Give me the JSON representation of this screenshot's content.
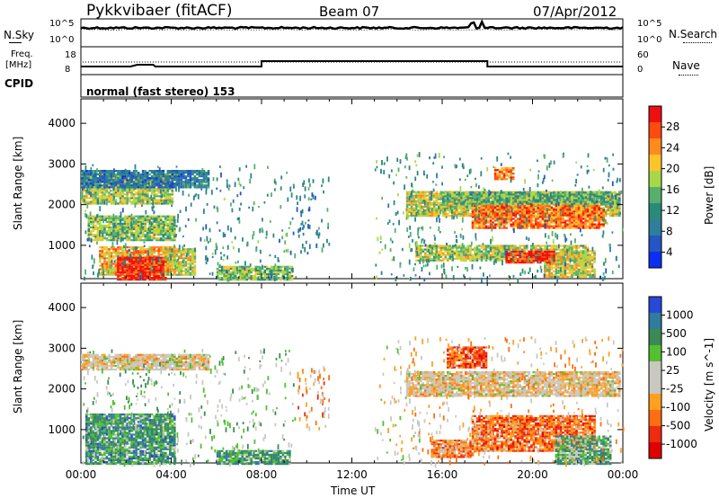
{
  "header": {
    "station": "Pykkvibaer (fitACF)",
    "beam": "Beam 07",
    "date": "07/Apr/2012"
  },
  "strip_panels": {
    "nsky_label": "N.Sky",
    "nsearch_label": "N.Search",
    "noise_ticks_left": [
      "10^5",
      "10^0"
    ],
    "noise_ticks_right": [
      "10^5",
      "10^0"
    ],
    "freq_label": "Freq.",
    "freq_unit": "[MHz]",
    "freq_ticks": [
      "18",
      "8"
    ],
    "nave_label": "Nave",
    "nave_ticks": [
      "60",
      "0"
    ],
    "cpid_label": "CPID",
    "cpid_text": "normal (fast stereo) 153"
  },
  "chart_data": [
    {
      "type": "heatmap",
      "name": "power",
      "ylabel": "Slant Range [km]",
      "y_ticks": [
        1000,
        2000,
        3000,
        4000
      ],
      "ylim": [
        180,
        4600
      ],
      "xlim": [
        0,
        24
      ],
      "x_ticks": [
        "00:00",
        "04:00",
        "08:00",
        "12:00",
        "16:00",
        "20:00",
        "00:00"
      ],
      "colorbar": {
        "label": "Power [dB]",
        "ticks": [
          "28",
          "24",
          "20",
          "16",
          "12",
          "8",
          "4"
        ],
        "colors": [
          "#ee1010",
          "#ff4a12",
          "#ff8a1e",
          "#ffc42a",
          "#a8d84a",
          "#55b06c",
          "#2a8a7a",
          "#2f7e9c",
          "#2357c4",
          "#0b2ff0"
        ]
      },
      "regions": [
        {
          "x": [
            0.0,
            4.1
          ],
          "y": [
            2050,
            2780
          ],
          "level": 0.55
        },
        {
          "x": [
            0.0,
            5.6
          ],
          "y": [
            2450,
            2880
          ],
          "level": 0.25
        },
        {
          "x": [
            0.3,
            4.2
          ],
          "y": [
            1150,
            1750
          ],
          "level": 0.5
        },
        {
          "x": [
            0.8,
            4.2
          ],
          "y": [
            300,
            1000
          ],
          "level": 0.7
        },
        {
          "x": [
            1.6,
            3.8
          ],
          "y": [
            180,
            750
          ],
          "level": 0.95
        },
        {
          "x": [
            3.7,
            5.0
          ],
          "y": [
            300,
            950
          ],
          "level": 0.6
        },
        {
          "x": [
            6.0,
            9.3
          ],
          "y": [
            180,
            520
          ],
          "level": 0.5
        },
        {
          "x": [
            14.4,
            23.9
          ],
          "y": [
            1750,
            2350
          ],
          "level": 0.6
        },
        {
          "x": [
            17.3,
            23.2
          ],
          "y": [
            1450,
            2050
          ],
          "level": 0.8
        },
        {
          "x": [
            16.0,
            23.9
          ],
          "y": [
            2050,
            2350
          ],
          "level": 0.45
        },
        {
          "x": [
            18.3,
            19.2
          ],
          "y": [
            2650,
            2950
          ],
          "level": 0.75
        },
        {
          "x": [
            14.8,
            22.5
          ],
          "y": [
            650,
            1050
          ],
          "level": 0.55
        },
        {
          "x": [
            20.5,
            22.8
          ],
          "y": [
            250,
            900
          ],
          "level": 0.6
        },
        {
          "x": [
            18.8,
            21.0
          ],
          "y": [
            600,
            900
          ],
          "level": 0.9
        }
      ],
      "sparse": [
        {
          "x": [
            0.0,
            9.5
          ],
          "y": [
            180,
            3000
          ],
          "level": 0.35
        },
        {
          "x": [
            9.5,
            11.0
          ],
          "y": [
            800,
            2700
          ],
          "level": 0.3
        },
        {
          "x": [
            13.0,
            15.0
          ],
          "y": [
            180,
            3300
          ],
          "level": 0.4
        },
        {
          "x": [
            14.5,
            24.0
          ],
          "y": [
            180,
            3300
          ],
          "level": 0.35
        }
      ]
    },
    {
      "type": "heatmap",
      "name": "velocity",
      "ylabel": "Slant Range [km]",
      "xlabel": "Time UT",
      "y_ticks": [
        1000,
        2000,
        3000,
        4000
      ],
      "ylim": [
        180,
        4600
      ],
      "xlim": [
        0,
        24
      ],
      "x_ticks": [
        "00:00",
        "04:00",
        "08:00",
        "12:00",
        "16:00",
        "20:00",
        "00:00"
      ],
      "colorbar": {
        "label": "Velocity [m s^-1]",
        "ticks": [
          "1000",
          "500",
          "100",
          "25",
          "-25",
          "-100",
          "-500",
          "-1000"
        ],
        "colors": [
          "#2848d8",
          "#2f7c9e",
          "#3a8a55",
          "#52c030",
          "#c8c8c0",
          "#c8c8c0",
          "#ffa020",
          "#ff6e10",
          "#ee2a10",
          "#e00000"
        ]
      },
      "regions": [
        {
          "x": [
            0.0,
            5.6
          ],
          "y": [
            2500,
            2900
          ],
          "level": 0.45
        },
        {
          "x": [
            14.4,
            23.9
          ],
          "y": [
            1850,
            2450
          ],
          "level": 0.45
        },
        {
          "x": [
            0.2,
            4.2
          ],
          "y": [
            180,
            1400
          ],
          "level": 0.75
        },
        {
          "x": [
            6.0,
            9.2
          ],
          "y": [
            180,
            520
          ],
          "level": 0.72
        },
        {
          "x": [
            16.2,
            18.0
          ],
          "y": [
            2550,
            3050
          ],
          "level": 0.2
        },
        {
          "x": [
            17.3,
            22.8
          ],
          "y": [
            500,
            1400
          ],
          "level": 0.25
        },
        {
          "x": [
            15.5,
            17.5
          ],
          "y": [
            350,
            800
          ],
          "level": 0.3
        },
        {
          "x": [
            21.0,
            23.5
          ],
          "y": [
            180,
            900
          ],
          "level": 0.7
        }
      ],
      "sparse": [
        {
          "x": [
            0.0,
            9.5
          ],
          "y": [
            180,
            3000
          ],
          "level": 0.6
        },
        {
          "x": [
            9.5,
            11.0
          ],
          "y": [
            1000,
            2600
          ],
          "level": 0.35
        },
        {
          "x": [
            13.0,
            15.0
          ],
          "y": [
            180,
            3300
          ],
          "level": 0.5
        },
        {
          "x": [
            14.5,
            24.0
          ],
          "y": [
            180,
            3300
          ],
          "level": 0.4
        }
      ]
    }
  ]
}
